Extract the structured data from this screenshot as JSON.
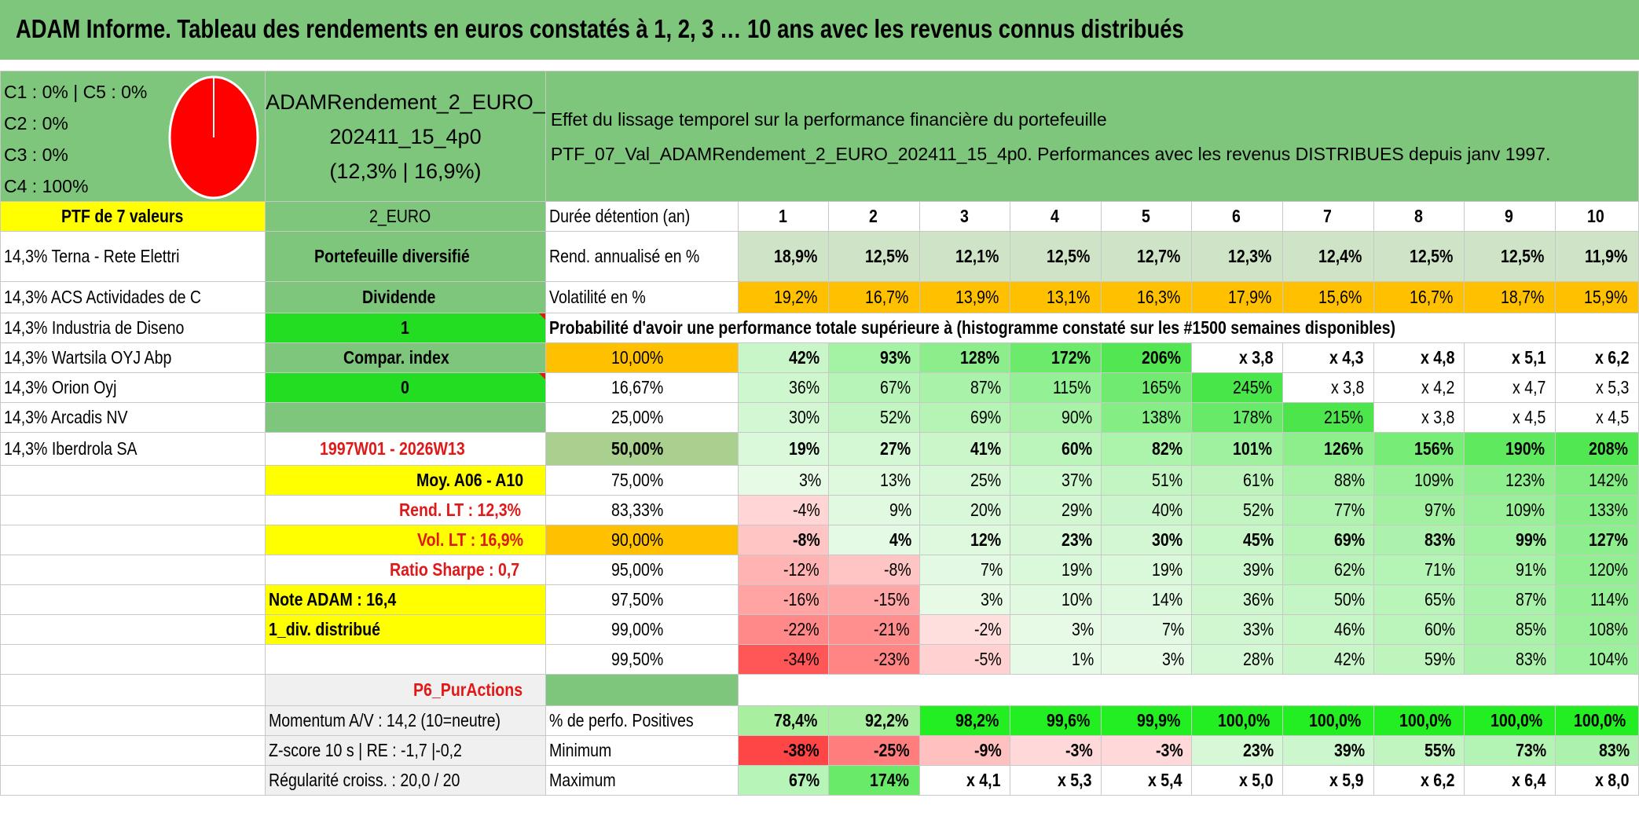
{
  "title": "ADAM Informe. Tableau des rendements en euros constatés à 1, 2, 3 … 10 ans avec les revenus connus distribués",
  "legend": [
    "C1 : 0% | C5 : 0%",
    "C2 : 0%",
    "C3 : 0%",
    "C4 : 100%"
  ],
  "pie_color": "#ff0000",
  "portfolio": {
    "name_line1": "ADAMRendement_2_EURO_",
    "name_line2": "202411_15_4p0",
    "name_line3": "(12,3% | 16,9%)"
  },
  "effect": {
    "line1": "Effet du lissage temporel sur la performance financière du portefeuille",
    "line2": "PTF_07_Val_ADAMRendement_2_EURO_202411_15_4p0. Performances avec les revenus DISTRIBUES depuis janv 1997."
  },
  "ptf_header": "PTF de 7 valeurs",
  "category": "2_EURO",
  "holdings": [
    "14,3% Terna - Rete Elettri",
    "14,3% ACS Actividades de C",
    "14,3% Industria de Diseno",
    "14,3% Wartsila OYJ Abp",
    "14,3% Orion Oyj",
    "14,3% Arcadis NV",
    "14,3% Iberdrola SA"
  ],
  "side": {
    "diversified": "Portefeuille diversifié",
    "dividend_label": "Dividende",
    "dividend_value": "1",
    "compar_label": "Compar. index",
    "compar_value": "0",
    "period": "1997W01 - 2026W13",
    "moy": "Moy. A06 - A10",
    "rend_lt": "Rend. LT : 12,3%",
    "vol_lt": "Vol. LT : 16,9%",
    "sharpe": "Ratio Sharpe : 0,7",
    "note": "Note ADAM : 16,4",
    "div_distrib": "1_div. distribué",
    "p6": "P6_PurActions",
    "momentum": "Momentum A/V : 14,2 (10=neutre)",
    "zscore": "Z-score 10 s | RE : -1,7 |-0,2",
    "regularite": "Régularité croiss. : 20,0 / 20"
  },
  "table": {
    "duree_label": "Durée détention (an)",
    "years": [
      "1",
      "2",
      "3",
      "4",
      "5",
      "6",
      "7",
      "8",
      "9",
      "10"
    ],
    "rend_label": "Rend. annualisé en %",
    "rend": [
      "18,9%",
      "12,5%",
      "12,1%",
      "12,5%",
      "12,7%",
      "12,3%",
      "12,4%",
      "12,5%",
      "12,5%",
      "11,9%"
    ],
    "vol_label": "Volatilité en %",
    "vol": [
      "19,2%",
      "16,7%",
      "13,9%",
      "13,1%",
      "16,3%",
      "17,9%",
      "15,6%",
      "16,7%",
      "18,7%",
      "15,9%"
    ],
    "proba_label": "Probabilité d'avoir une performance totale supérieure à (histogramme constaté sur les #1500 semaines disponibles)",
    "quantiles": [
      {
        "p": "10,00%",
        "v": [
          "42%",
          "93%",
          "128%",
          "172%",
          "206%",
          "x 3,8",
          "x 4,3",
          "x 4,8",
          "x 5,1",
          "x 6,2"
        ]
      },
      {
        "p": "16,67%",
        "v": [
          "36%",
          "67%",
          "87%",
          "115%",
          "165%",
          "245%",
          "x 3,8",
          "x 4,2",
          "x 4,7",
          "x 5,3"
        ]
      },
      {
        "p": "25,00%",
        "v": [
          "30%",
          "52%",
          "69%",
          "90%",
          "138%",
          "178%",
          "215%",
          "x 3,8",
          "x 4,5",
          "x 4,5"
        ]
      },
      {
        "p": "50,00%",
        "v": [
          "19%",
          "27%",
          "41%",
          "60%",
          "82%",
          "101%",
          "126%",
          "156%",
          "190%",
          "208%"
        ]
      },
      {
        "p": "75,00%",
        "v": [
          "3%",
          "13%",
          "25%",
          "37%",
          "51%",
          "61%",
          "88%",
          "109%",
          "123%",
          "142%"
        ]
      },
      {
        "p": "83,33%",
        "v": [
          "-4%",
          "9%",
          "20%",
          "29%",
          "40%",
          "52%",
          "77%",
          "97%",
          "109%",
          "133%"
        ]
      },
      {
        "p": "90,00%",
        "v": [
          "-8%",
          "4%",
          "12%",
          "23%",
          "30%",
          "45%",
          "69%",
          "83%",
          "99%",
          "127%"
        ]
      },
      {
        "p": "95,00%",
        "v": [
          "-12%",
          "-8%",
          "7%",
          "19%",
          "19%",
          "39%",
          "62%",
          "71%",
          "91%",
          "120%"
        ]
      },
      {
        "p": "97,50%",
        "v": [
          "-16%",
          "-15%",
          "3%",
          "10%",
          "14%",
          "36%",
          "50%",
          "65%",
          "87%",
          "114%"
        ]
      },
      {
        "p": "99,00%",
        "v": [
          "-22%",
          "-21%",
          "-2%",
          "3%",
          "7%",
          "33%",
          "46%",
          "60%",
          "85%",
          "108%"
        ]
      },
      {
        "p": "99,50%",
        "v": [
          "-34%",
          "-23%",
          "-5%",
          "1%",
          "3%",
          "28%",
          "42%",
          "59%",
          "83%",
          "104%"
        ]
      }
    ],
    "pos_label": "% de perfo. Positives",
    "pos": [
      "78,4%",
      "92,2%",
      "98,2%",
      "99,6%",
      "99,9%",
      "100,0%",
      "100,0%",
      "100,0%",
      "100,0%",
      "100,0%"
    ],
    "min_label": "Minimum",
    "min": [
      "-38%",
      "-25%",
      "-9%",
      "-3%",
      "-3%",
      "23%",
      "39%",
      "55%",
      "73%",
      "83%"
    ],
    "max_label": "Maximum",
    "max": [
      "67%",
      "174%",
      "x 4,1",
      "x 5,3",
      "x 5,4",
      "x 5,0",
      "x 5,9",
      "x 6,2",
      "x 6,4",
      "x 8,0"
    ]
  },
  "colors": {
    "green": "#7dc67c",
    "yellow": "#ffff00",
    "orange": "#ffc000",
    "red_text": "#e01818"
  }
}
